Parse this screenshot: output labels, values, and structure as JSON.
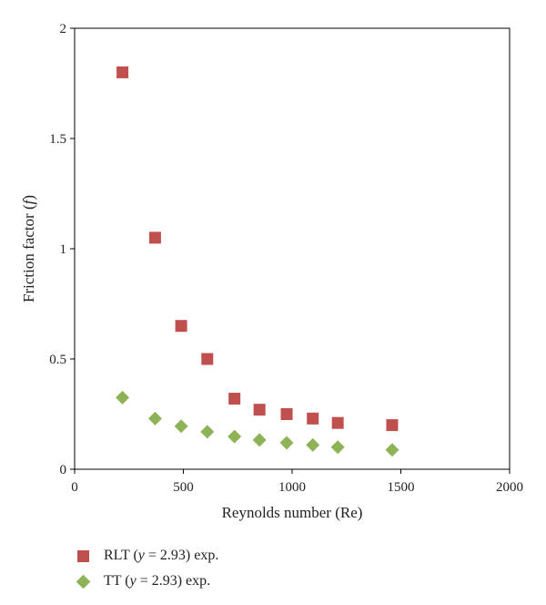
{
  "chart_data": {
    "type": "scatter",
    "xlabel": "Reynolds number (Re)",
    "ylabel_prefix": "Friction factor (",
    "ylabel_var": "f",
    "ylabel_suffix": ")",
    "xlim": [
      0,
      2000
    ],
    "ylim": [
      0,
      2
    ],
    "x_ticks": [
      0,
      500,
      1000,
      1500,
      2000
    ],
    "x_tick_labels": [
      "0",
      "500",
      "1000",
      "1500",
      "2000"
    ],
    "y_ticks": [
      0,
      0.5,
      1,
      1.5,
      2
    ],
    "y_tick_labels": [
      "0",
      "0.5",
      "1",
      "1.5",
      "2"
    ],
    "grid": false,
    "legend_position": "bottom-left, below plot",
    "series": [
      {
        "name": "RLT (y = 2.93) exp.",
        "label_prefix": "RLT (",
        "label_var": "y",
        "label_suffix": " = 2.93) exp.",
        "marker": "square",
        "color": "#c0504d",
        "x": [
          220,
          370,
          490,
          610,
          735,
          850,
          975,
          1095,
          1210,
          1460
        ],
        "y": [
          1.8,
          1.05,
          0.65,
          0.5,
          0.32,
          0.27,
          0.25,
          0.23,
          0.21,
          0.2
        ]
      },
      {
        "name": "TT (y = 2.93) exp.",
        "label_prefix": "TT (",
        "label_var": "y",
        "label_suffix": " = 2.93) exp.",
        "marker": "diamond",
        "color": "#8db356",
        "x": [
          220,
          370,
          490,
          610,
          735,
          850,
          975,
          1095,
          1210,
          1460
        ],
        "y": [
          0.325,
          0.23,
          0.195,
          0.17,
          0.148,
          0.133,
          0.12,
          0.11,
          0.1,
          0.088
        ]
      }
    ]
  }
}
